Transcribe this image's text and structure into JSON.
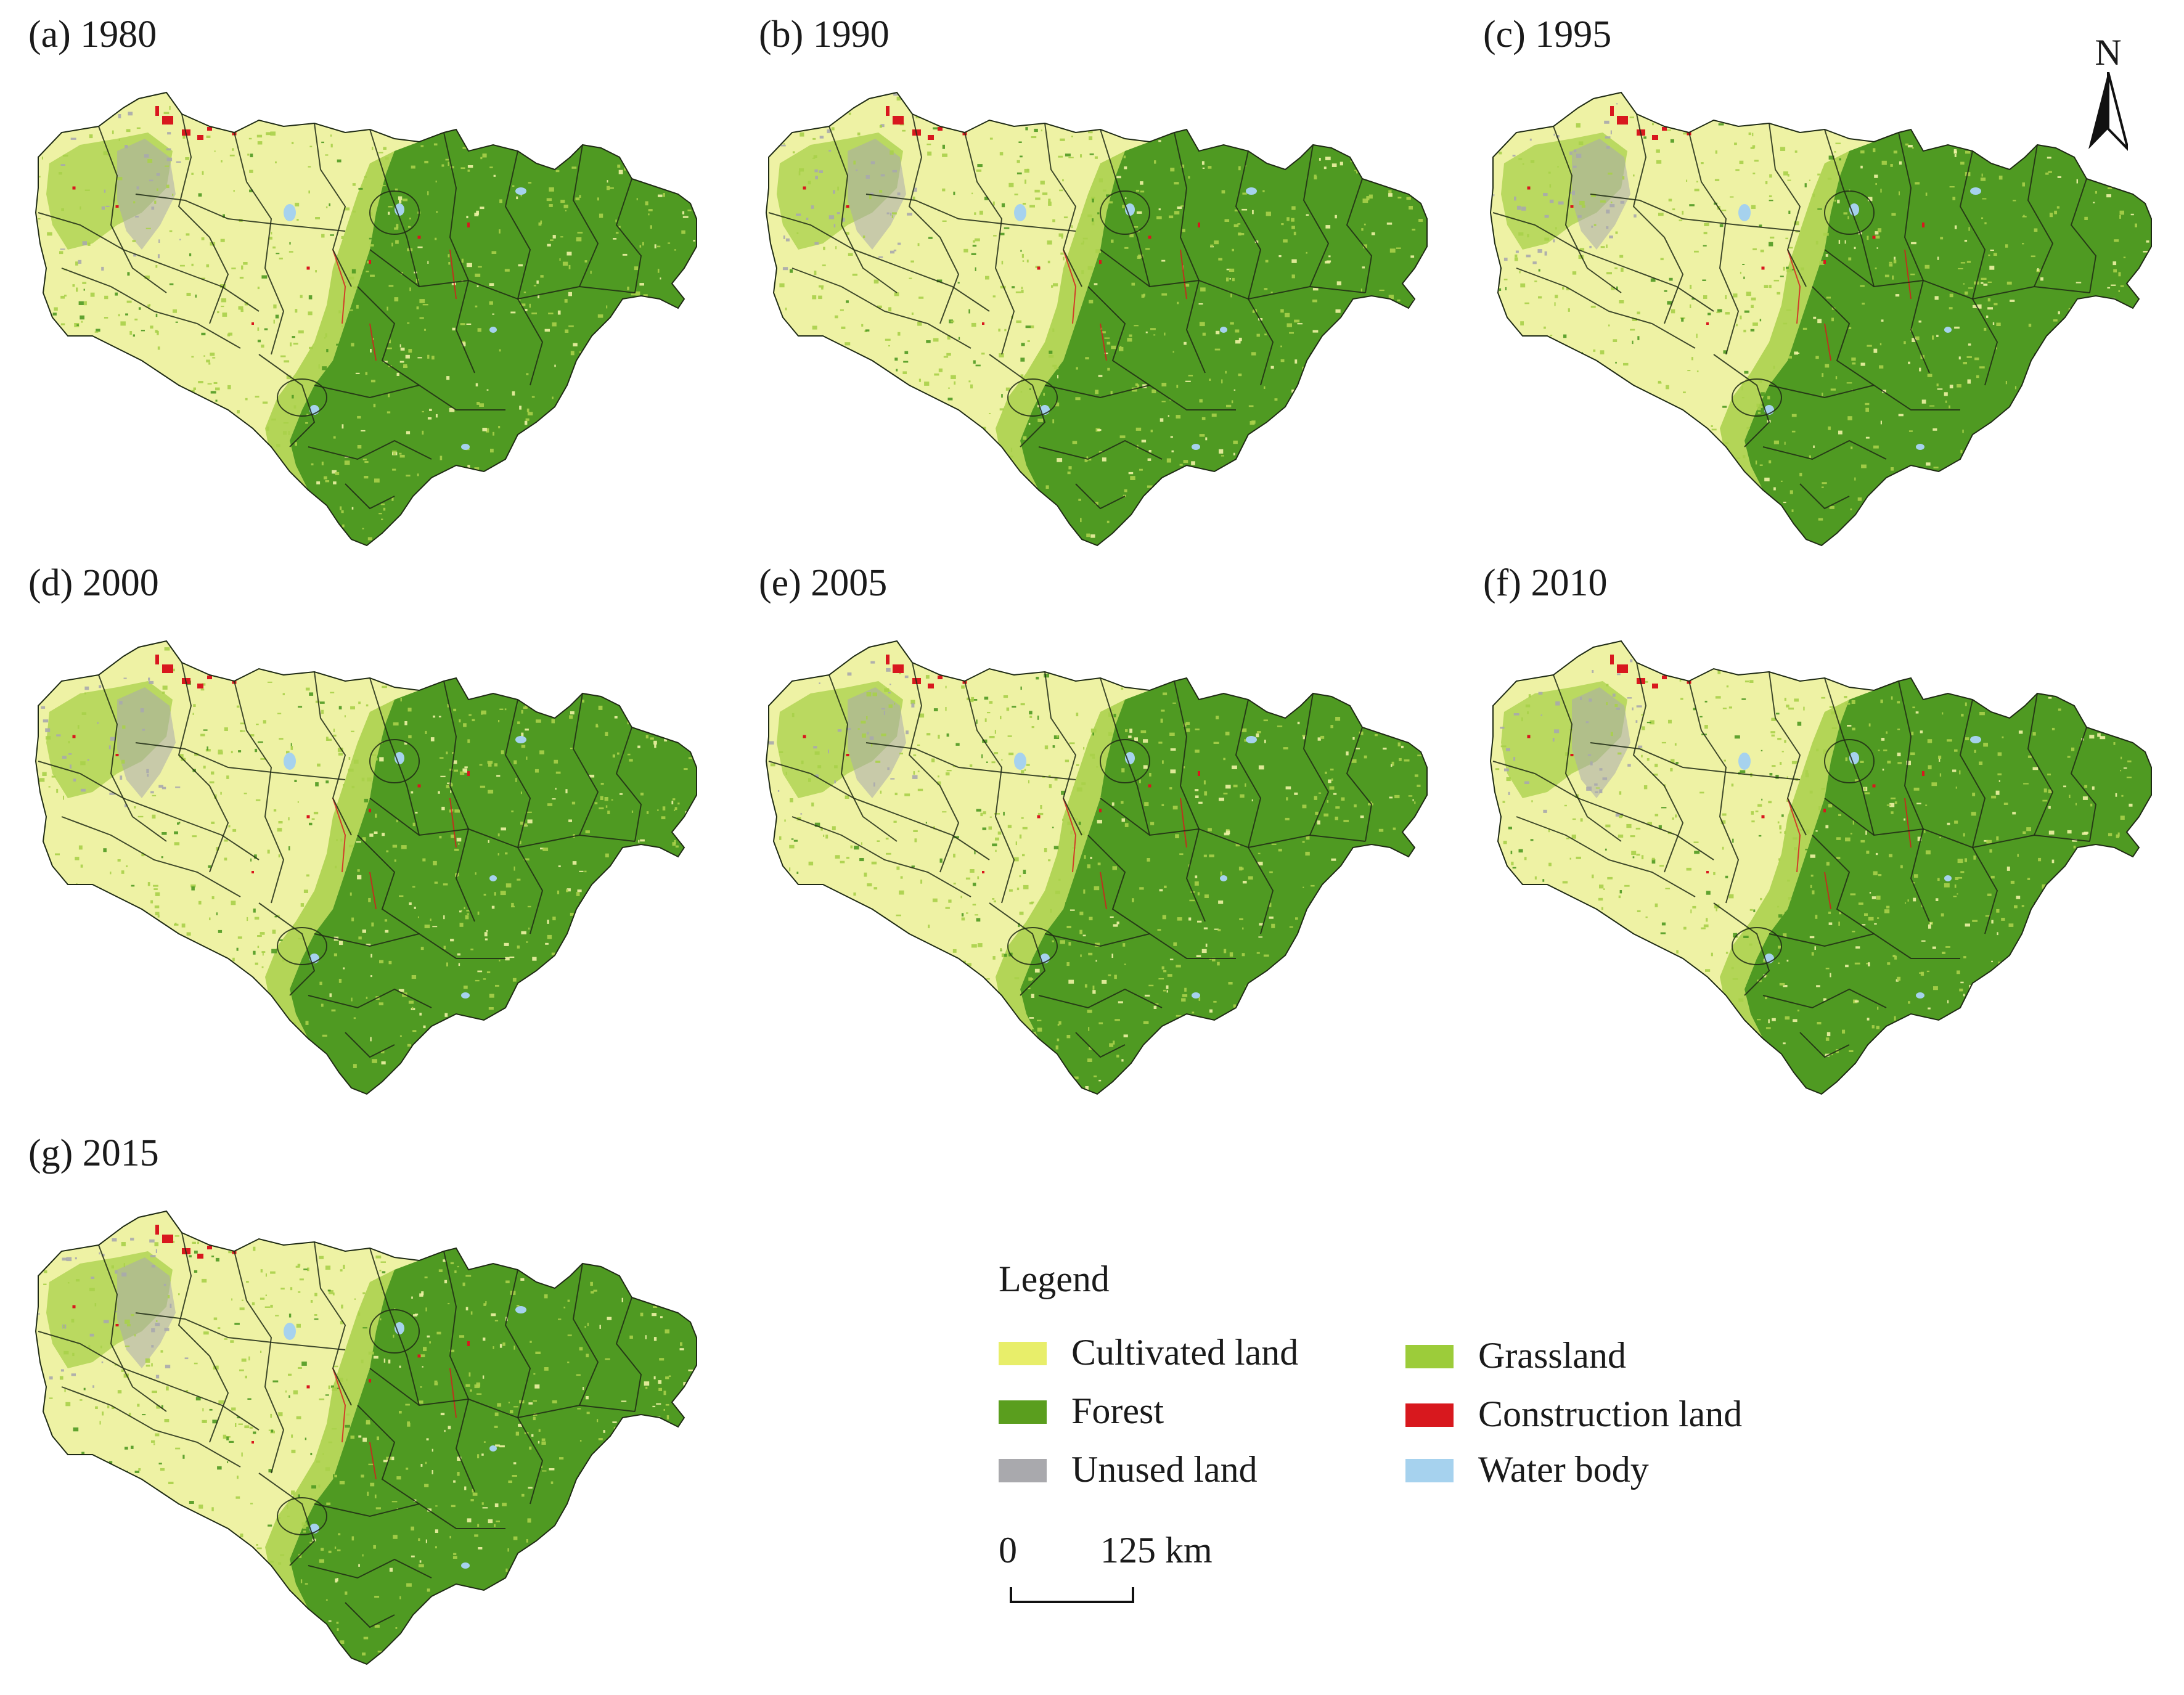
{
  "panels": [
    {
      "label": "(a) 1980"
    },
    {
      "label": "(b) 1990"
    },
    {
      "label": "(c) 1995"
    },
    {
      "label": "(d) 2000"
    },
    {
      "label": "(e) 2005"
    },
    {
      "label": "(f) 2010"
    },
    {
      "label": "(g) 2015"
    }
  ],
  "north_arrow": {
    "label": "N"
  },
  "legend": {
    "title": "Legend",
    "items": [
      {
        "label": "Cultivated land",
        "color": "#e8ee6a"
      },
      {
        "label": "Grassland",
        "color": "#9ccc3a"
      },
      {
        "label": "Forest",
        "color": "#5a9e1e"
      },
      {
        "label": "Construction land",
        "color": "#d8181e"
      },
      {
        "label": "Unused land",
        "color": "#a9a9ad"
      },
      {
        "label": "Water body",
        "color": "#a6d2ee"
      }
    ]
  },
  "scale_bar": {
    "zero": "0",
    "end": "125 km"
  },
  "colors": {
    "cultivated": "#eef2a4",
    "grassland": "#a8d04a",
    "forest": "#4f9a22",
    "construction": "#d8181e",
    "unused": "#a9a9ad",
    "water": "#a6d2ee",
    "boundary": "#1e2a14"
  }
}
